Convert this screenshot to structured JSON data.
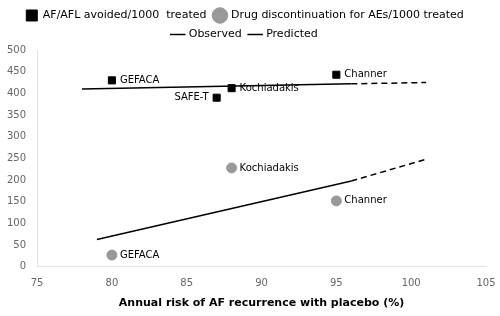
{
  "chart_data": {
    "type": "scatter",
    "xlabel": "Annual risk of AF recurrence with placebo (%)",
    "xlim": [
      75,
      105
    ],
    "xticks": [
      75,
      80,
      85,
      90,
      95,
      100,
      105
    ],
    "ylim": [
      0,
      500
    ],
    "yticks": [
      0,
      50,
      100,
      150,
      200,
      250,
      300,
      350,
      400,
      450,
      500
    ],
    "grid": false,
    "legend": "top",
    "series": [
      {
        "name": "AF/AFL avoided/1000  treated",
        "type": "scatter",
        "marker": "square",
        "color": "#000000",
        "x": [
          80,
          87,
          88,
          95
        ],
        "values": [
          430,
          390,
          412,
          443
        ],
        "point_labels": [
          "GEFACA",
          "SAFE-T",
          "Kochiadakis",
          "Channer"
        ]
      },
      {
        "name": "Drug discontinuation for AEs/1000 treated",
        "type": "scatter",
        "marker": "circle",
        "color": "#999999",
        "x": [
          80,
          88,
          95
        ],
        "values": [
          27,
          228,
          152
        ],
        "point_labels": [
          "GEFACA",
          "Kochiadakis",
          "Channer"
        ]
      },
      {
        "name": "Observed",
        "type": "line",
        "line_style": "solid",
        "color": "#000000",
        "x": [
          78,
          96
        ],
        "values": [
          410,
          422
        ]
      },
      {
        "name": "Predicted",
        "type": "line",
        "line_style": "dashed",
        "color": "#000000",
        "x": [
          96,
          101
        ],
        "values": [
          422,
          425
        ]
      },
      {
        "name": "Observed",
        "type": "line",
        "line_style": "solid",
        "color": "#000000",
        "x": [
          79,
          96
        ],
        "values": [
          63,
          198
        ]
      },
      {
        "name": "Predicted",
        "type": "line",
        "line_style": "dashed",
        "color": "#000000",
        "x": [
          96,
          101
        ],
        "values": [
          198,
          248
        ]
      }
    ]
  }
}
